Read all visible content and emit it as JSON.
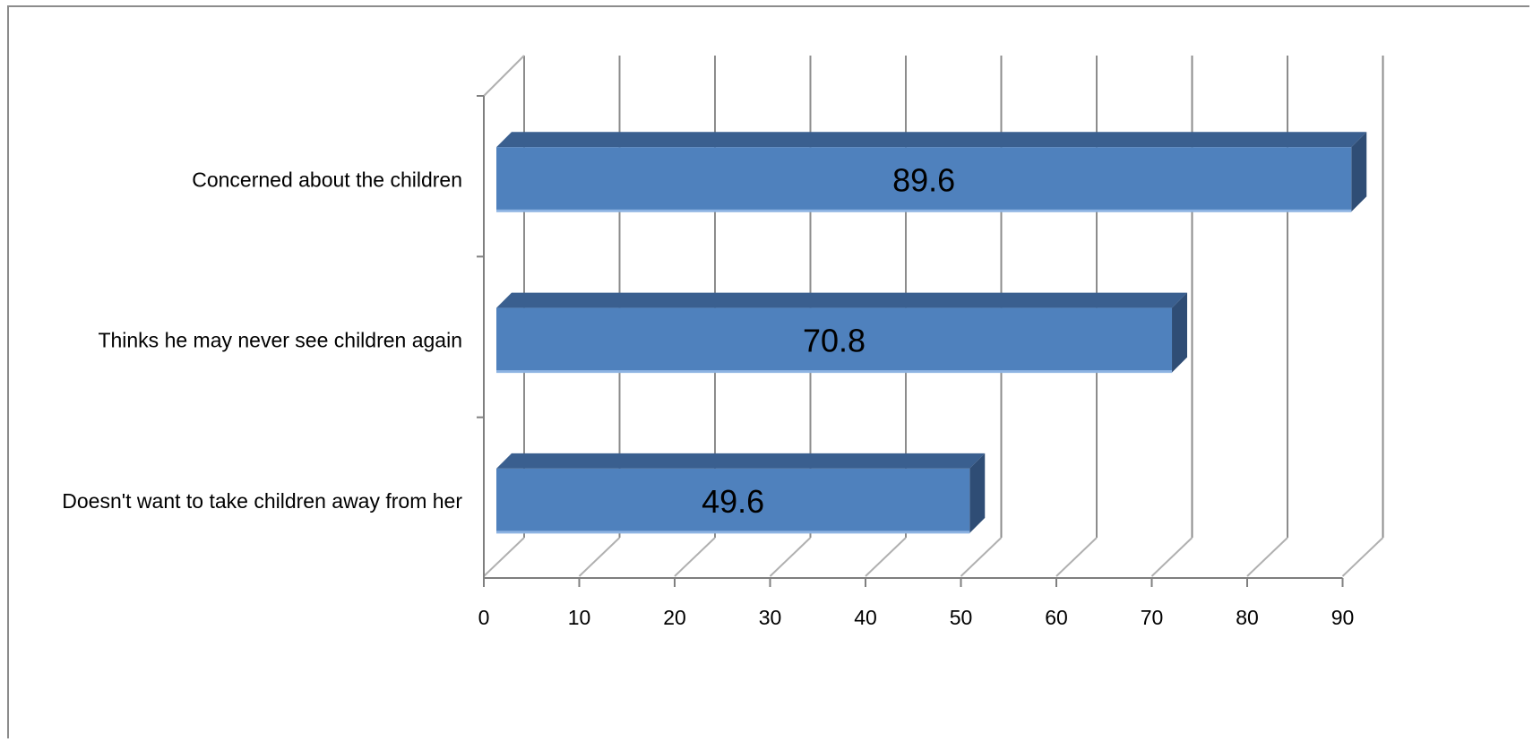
{
  "chart_data": {
    "type": "bar",
    "orientation": "horizontal",
    "style": "3d",
    "categories": [
      "Concerned about the children",
      "Thinks he may never see children again",
      "Doesn't want to take children away from her"
    ],
    "values": [
      89.6,
      70.8,
      49.6
    ],
    "data_labels": [
      "89.6",
      "70.8",
      "49.6"
    ],
    "title": "",
    "xlabel": "",
    "ylabel": "",
    "xlim": [
      0,
      90
    ],
    "x_ticks": [
      "0",
      "10",
      "20",
      "30",
      "40",
      "50",
      "60",
      "70",
      "80",
      "90"
    ],
    "grid": true,
    "legend": "none",
    "colors": {
      "bar_front": "#4f81bd",
      "bar_top": "#3a5f8f",
      "bar_side": "#2f4d75",
      "bar_highlight": "#8db3e2",
      "gridline": "#8c8c8c",
      "axis": "#7f7f7f"
    }
  }
}
